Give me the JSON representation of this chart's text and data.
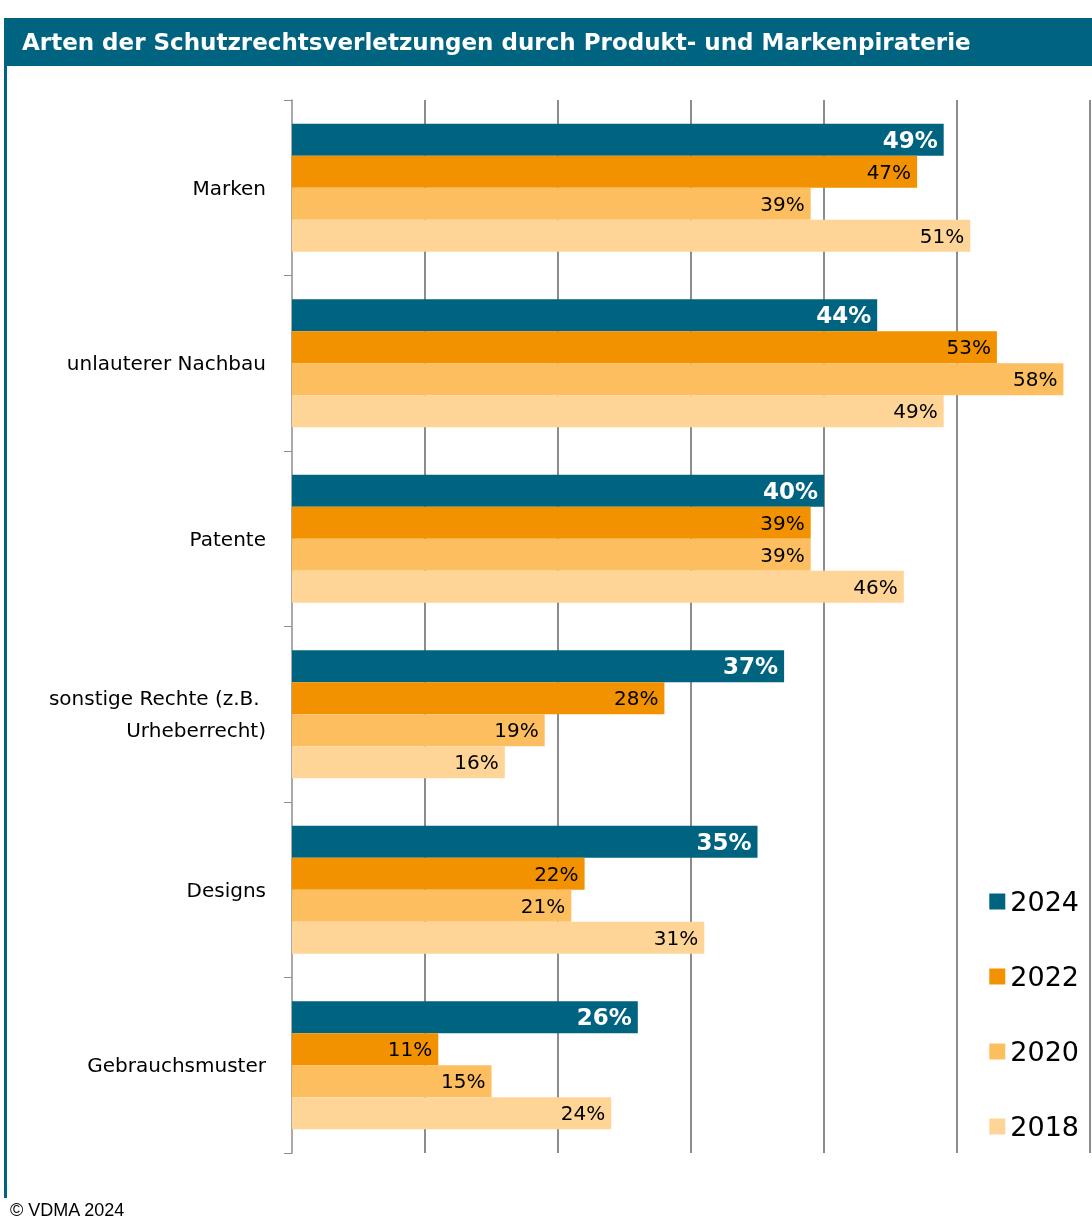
{
  "chart_data": {
    "type": "bar",
    "orientation": "horizontal",
    "title": "Arten der Schutzrechtsverletzungen durch Produkt- und Markenpiraterie",
    "categories": [
      "Marken",
      "unlauterer Nachbau",
      "Patente",
      "sonstige Rechte (z.B. Urheberrecht)",
      "Designs",
      "Gebrauchsmuster"
    ],
    "series": [
      {
        "name": "2024",
        "color": "#00637f",
        "values": [
          49,
          44,
          40,
          37,
          35,
          26
        ],
        "value_labels": [
          "49%",
          "44%",
          "40%",
          "37%",
          "35%",
          "26%"
        ]
      },
      {
        "name": "2022",
        "color": "#f39200",
        "values": [
          47,
          53,
          39,
          28,
          22,
          11
        ],
        "value_labels": [
          "47%",
          "53%",
          "39%",
          "28%",
          "22%",
          "11%"
        ]
      },
      {
        "name": "2020",
        "color": "#fdbe5f",
        "values": [
          39,
          58,
          39,
          19,
          21,
          15
        ],
        "value_labels": [
          "39%",
          "58%",
          "39%",
          "19%",
          "21%",
          "15%"
        ]
      },
      {
        "name": "2018",
        "color": "#fed597",
        "values": [
          51,
          49,
          46,
          16,
          31,
          24
        ],
        "value_labels": [
          "51%",
          "49%",
          "46%",
          "16%",
          "31%",
          "24%"
        ]
      }
    ],
    "tick_labels": "y",
    "grid": "x",
    "legend": "bottom right",
    "annotations": [
      "© VDMA 2024"
    ]
  }
}
